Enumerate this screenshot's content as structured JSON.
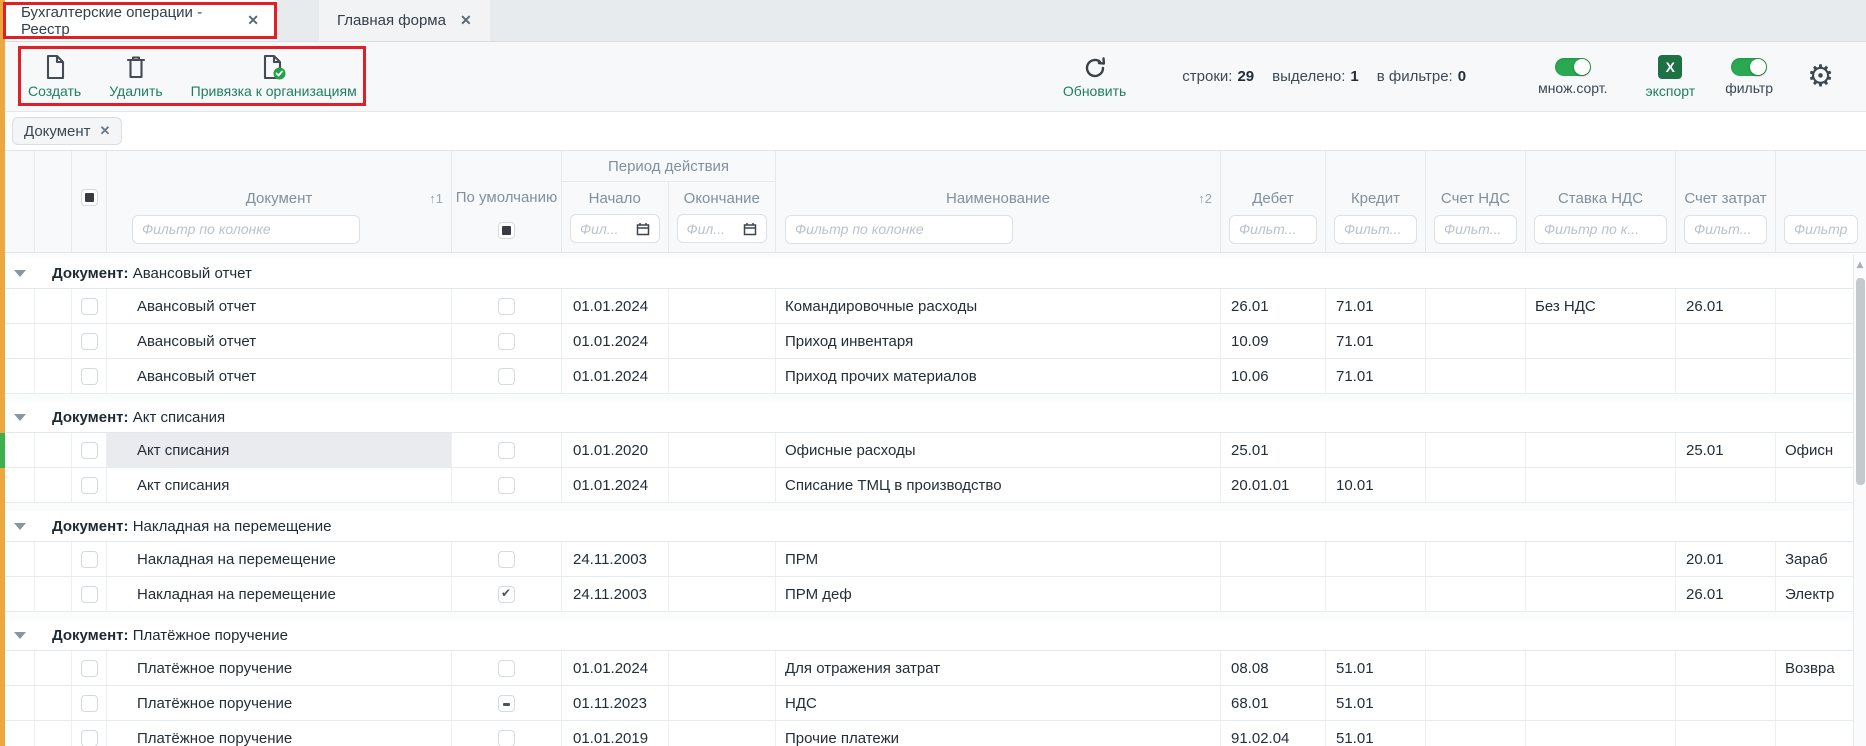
{
  "tabs": [
    {
      "title": "Бухгалтерские операции - Реестр",
      "close": "✕"
    },
    {
      "title": "Главная форма",
      "close": "✕"
    }
  ],
  "toolbar": {
    "create": "Создать",
    "remove": "Удалить",
    "link_orgs": "Привязка к организациям",
    "refresh": "Обновить",
    "stats": [
      {
        "label": "строки:",
        "value": "29"
      },
      {
        "label": "выделено:",
        "value": "1"
      },
      {
        "label": "в фильтре:",
        "value": "0"
      }
    ],
    "multi_sort": "множ.сорт.",
    "export_label": "экспорт",
    "excel_letter": "X",
    "filter_label": "фильтр"
  },
  "filter_chip": {
    "label": "Документ",
    "close": "✕"
  },
  "colors": {
    "accent_green": "#1e7e63",
    "toggle_green": "#2aa952",
    "excel_green": "#1e7145",
    "annotation_red": "#e01f26",
    "stripe_orange": "#eda73f",
    "selected_row_marker": "#3db04c"
  },
  "table": {
    "group_prefix": "Документ:",
    "header": {
      "doc": {
        "label": "Документ",
        "sort": "↑1",
        "filter": "Фильтр по колонке"
      },
      "default_col": {
        "label": "По умолчанию"
      },
      "period": {
        "label": "Период действия",
        "start_label": "Начало",
        "start_filter": "Фил...",
        "end_label": "Окончание",
        "end_filter": "Фил..."
      },
      "name": {
        "label": "Наименование",
        "sort": "↑2",
        "filter": "Фильтр по колонке"
      },
      "debit": {
        "label": "Дебет",
        "filter": "Фильт..."
      },
      "credit": {
        "label": "Кредит",
        "filter": "Фильт..."
      },
      "vat_account": {
        "label": "Счет НДС",
        "filter": "Фильт..."
      },
      "vat_rate": {
        "label": "Ставка НДС",
        "filter": "Фильтр по к..."
      },
      "cost_account": {
        "label": "Счет затрат",
        "filter": "Фильт..."
      },
      "cost_name": {
        "label": "",
        "filter": "Фильтр"
      }
    },
    "groups": [
      {
        "title": "Авансовый отчет",
        "rows": [
          {
            "doc": "Авансовый отчет",
            "default": "",
            "start": "01.01.2024",
            "end": "",
            "name": "Командировочные расходы",
            "debit": "26.01",
            "credit": "71.01",
            "vat_account": "",
            "vat_rate": "Без НДС",
            "cost_account": "26.01",
            "cost_name": "",
            "selected": false
          },
          {
            "doc": "Авансовый отчет",
            "default": "",
            "start": "01.01.2024",
            "end": "",
            "name": "Приход инвентаря",
            "debit": "10.09",
            "credit": "71.01",
            "vat_account": "",
            "vat_rate": "",
            "cost_account": "",
            "cost_name": "",
            "selected": false
          },
          {
            "doc": "Авансовый отчет",
            "default": "",
            "start": "01.01.2024",
            "end": "",
            "name": "Приход прочих материалов",
            "debit": "10.06",
            "credit": "71.01",
            "vat_account": "",
            "vat_rate": "",
            "cost_account": "",
            "cost_name": "",
            "selected": false
          }
        ]
      },
      {
        "title": "Акт списания",
        "rows": [
          {
            "doc": "Акт списания",
            "default": "",
            "start": "01.01.2020",
            "end": "",
            "name": "Офисные расходы",
            "debit": "25.01",
            "credit": "",
            "vat_account": "",
            "vat_rate": "",
            "cost_account": "25.01",
            "cost_name": "Офисн",
            "selected": true
          },
          {
            "doc": "Акт списания",
            "default": "",
            "start": "01.01.2024",
            "end": "",
            "name": "Списание ТМЦ в производство",
            "debit": "20.01.01",
            "credit": "10.01",
            "vat_account": "",
            "vat_rate": "",
            "cost_account": "",
            "cost_name": "",
            "selected": false
          }
        ]
      },
      {
        "title": "Накладная на перемещение",
        "rows": [
          {
            "doc": "Накладная на перемещение",
            "default": "",
            "start": "24.11.2003",
            "end": "",
            "name": "ПРМ",
            "debit": "",
            "credit": "",
            "vat_account": "",
            "vat_rate": "",
            "cost_account": "20.01",
            "cost_name": "Зараб",
            "selected": false
          },
          {
            "doc": "Накладная на перемещение",
            "default": "checked",
            "start": "24.11.2003",
            "end": "",
            "name": "ПРМ деф",
            "debit": "",
            "credit": "",
            "vat_account": "",
            "vat_rate": "",
            "cost_account": "26.01",
            "cost_name": "Электр",
            "selected": false
          }
        ]
      },
      {
        "title": "Платёжное поручение",
        "rows": [
          {
            "doc": "Платёжное поручение",
            "default": "",
            "start": "01.01.2024",
            "end": "",
            "name": "Для отражения затрат",
            "debit": "08.08",
            "credit": "51.01",
            "vat_account": "",
            "vat_rate": "",
            "cost_account": "",
            "cost_name": "Возвра",
            "selected": false
          },
          {
            "doc": "Платёжное поручение",
            "default": "indet",
            "start": "01.11.2023",
            "end": "",
            "name": "НДС",
            "debit": "68.01",
            "credit": "51.01",
            "vat_account": "",
            "vat_rate": "",
            "cost_account": "",
            "cost_name": "",
            "selected": false
          },
          {
            "doc": "Платёжное поручение",
            "default": "",
            "start": "01.01.2019",
            "end": "",
            "name": "Прочие платежи",
            "debit": "91.02.04",
            "credit": "51.01",
            "vat_account": "",
            "vat_rate": "",
            "cost_account": "",
            "cost_name": "",
            "selected": false
          }
        ]
      }
    ]
  }
}
